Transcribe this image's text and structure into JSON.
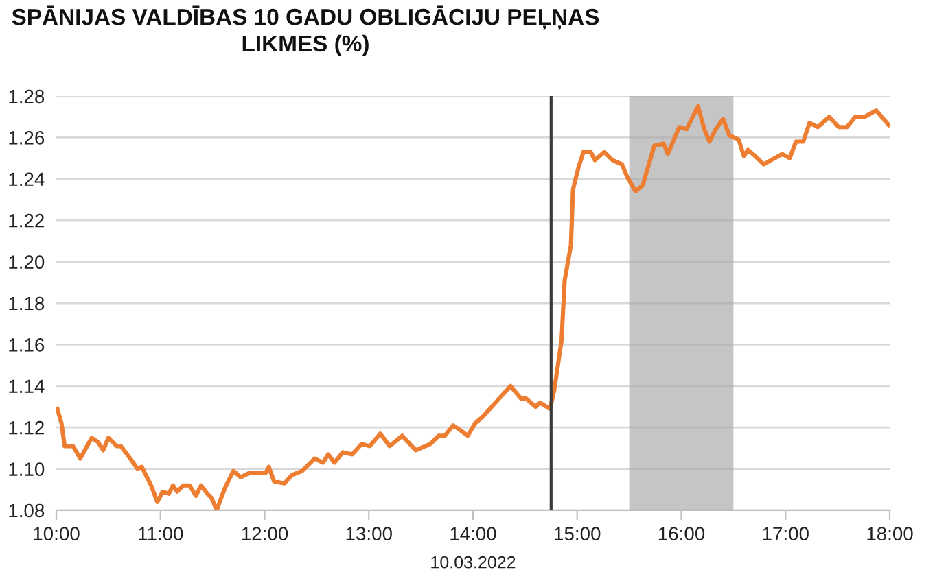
{
  "chart_data": {
    "type": "line",
    "title": "SPĀNIJAS VALDĪBAS 10 GADU OBLIGĀCIJU PEĻŅAS\nLIKMES (%)",
    "xlabel": "10.03.2022",
    "series": [
      {
        "color": "#ed7d31",
        "x": [
          10.01,
          10.05,
          10.08,
          10.16,
          10.23,
          10.34,
          10.4,
          10.45,
          10.5,
          10.58,
          10.62,
          10.71,
          10.78,
          10.82,
          10.91,
          10.97,
          11.02,
          11.08,
          11.12,
          11.16,
          11.22,
          11.28,
          11.34,
          11.39,
          11.45,
          11.49,
          11.54,
          11.59,
          11.63,
          11.7,
          11.77,
          11.85,
          11.92,
          12.01,
          12.04,
          12.09,
          12.19,
          12.26,
          12.36,
          12.48,
          12.56,
          12.61,
          12.67,
          12.75,
          12.84,
          12.93,
          13.01,
          13.11,
          13.2,
          13.32,
          13.45,
          13.59,
          13.67,
          13.73,
          13.81,
          13.87,
          13.95,
          14.02,
          14.09,
          14.18,
          14.36,
          14.46,
          14.51,
          14.6,
          14.64,
          14.74,
          14.78,
          14.85,
          14.88,
          14.94,
          14.96,
          15.01,
          15.06,
          15.13,
          15.17,
          15.26,
          15.34,
          15.43,
          15.48,
          15.56,
          15.63,
          15.74,
          15.83,
          15.87,
          15.98,
          16.05,
          16.16,
          16.22,
          16.27,
          16.33,
          16.4,
          16.46,
          16.55,
          16.6,
          16.64,
          16.71,
          16.79,
          16.86,
          16.97,
          17.04,
          17.1,
          17.17,
          17.23,
          17.31,
          17.42,
          17.51,
          17.59,
          17.67,
          17.76,
          17.87,
          17.94,
          17.99
        ],
        "values": [
          1.129,
          1.122,
          1.111,
          1.111,
          1.105,
          1.115,
          1.113,
          1.109,
          1.115,
          1.111,
          1.111,
          1.105,
          1.1,
          1.101,
          1.092,
          1.084,
          1.089,
          1.088,
          1.092,
          1.089,
          1.092,
          1.092,
          1.087,
          1.092,
          1.088,
          1.086,
          1.08,
          1.087,
          1.092,
          1.099,
          1.096,
          1.098,
          1.098,
          1.098,
          1.101,
          1.094,
          1.093,
          1.097,
          1.099,
          1.105,
          1.103,
          1.107,
          1.103,
          1.108,
          1.107,
          1.112,
          1.111,
          1.117,
          1.111,
          1.116,
          1.109,
          1.112,
          1.116,
          1.116,
          1.121,
          1.119,
          1.116,
          1.122,
          1.125,
          1.13,
          1.14,
          1.134,
          1.134,
          1.13,
          1.132,
          1.129,
          1.138,
          1.162,
          1.191,
          1.208,
          1.235,
          1.245,
          1.253,
          1.253,
          1.249,
          1.253,
          1.249,
          1.247,
          1.241,
          1.234,
          1.237,
          1.256,
          1.257,
          1.252,
          1.265,
          1.264,
          1.275,
          1.264,
          1.258,
          1.264,
          1.269,
          1.261,
          1.259,
          1.251,
          1.254,
          1.251,
          1.247,
          1.249,
          1.252,
          1.25,
          1.258,
          1.258,
          1.267,
          1.265,
          1.27,
          1.265,
          1.265,
          1.27,
          1.27,
          1.273,
          1.269,
          1.266
        ]
      }
    ],
    "xlim": [
      10,
      18
    ],
    "xticks": [
      {
        "value": 10,
        "label": "10:00"
      },
      {
        "value": 11,
        "label": "11:00"
      },
      {
        "value": 12,
        "label": "12:00"
      },
      {
        "value": 13,
        "label": "13:00"
      },
      {
        "value": 14,
        "label": "14:00"
      },
      {
        "value": 15,
        "label": "15:00"
      },
      {
        "value": 16,
        "label": "16:00"
      },
      {
        "value": 17,
        "label": "17:00"
      },
      {
        "value": 18,
        "label": "18:00"
      }
    ],
    "ylim": [
      1.08,
      1.28
    ],
    "yticks": [
      1.08,
      {
        "value": 1.1,
        "label": "1.10"
      },
      1.12,
      1.14,
      1.16,
      1.18,
      {
        "value": 1.2,
        "label": "1.20"
      },
      1.22,
      1.24,
      1.26,
      1.28
    ],
    "grid": "y",
    "legend": false,
    "line_style": "solid",
    "marker": "none",
    "ref_lines": [
      {
        "axis": "x",
        "value": 14.75,
        "color": "#3a3a3a"
      }
    ],
    "bands": [
      {
        "axis": "x",
        "from": 15.5,
        "to": 16.5,
        "color": "#a6a6a6"
      }
    ]
  }
}
